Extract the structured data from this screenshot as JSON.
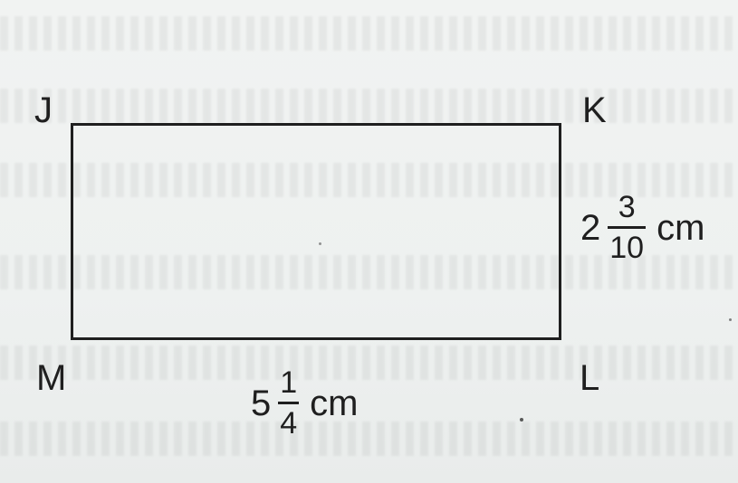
{
  "figure": {
    "vertices": {
      "top_left": "J",
      "top_right": "K",
      "bottom_right": "L",
      "bottom_left": "M"
    },
    "side_length": {
      "whole": "2",
      "numerator": "3",
      "denominator": "10",
      "unit": "cm"
    },
    "bottom_length": {
      "whole": "5",
      "numerator": "1",
      "denominator": "4",
      "unit": "cm"
    }
  }
}
